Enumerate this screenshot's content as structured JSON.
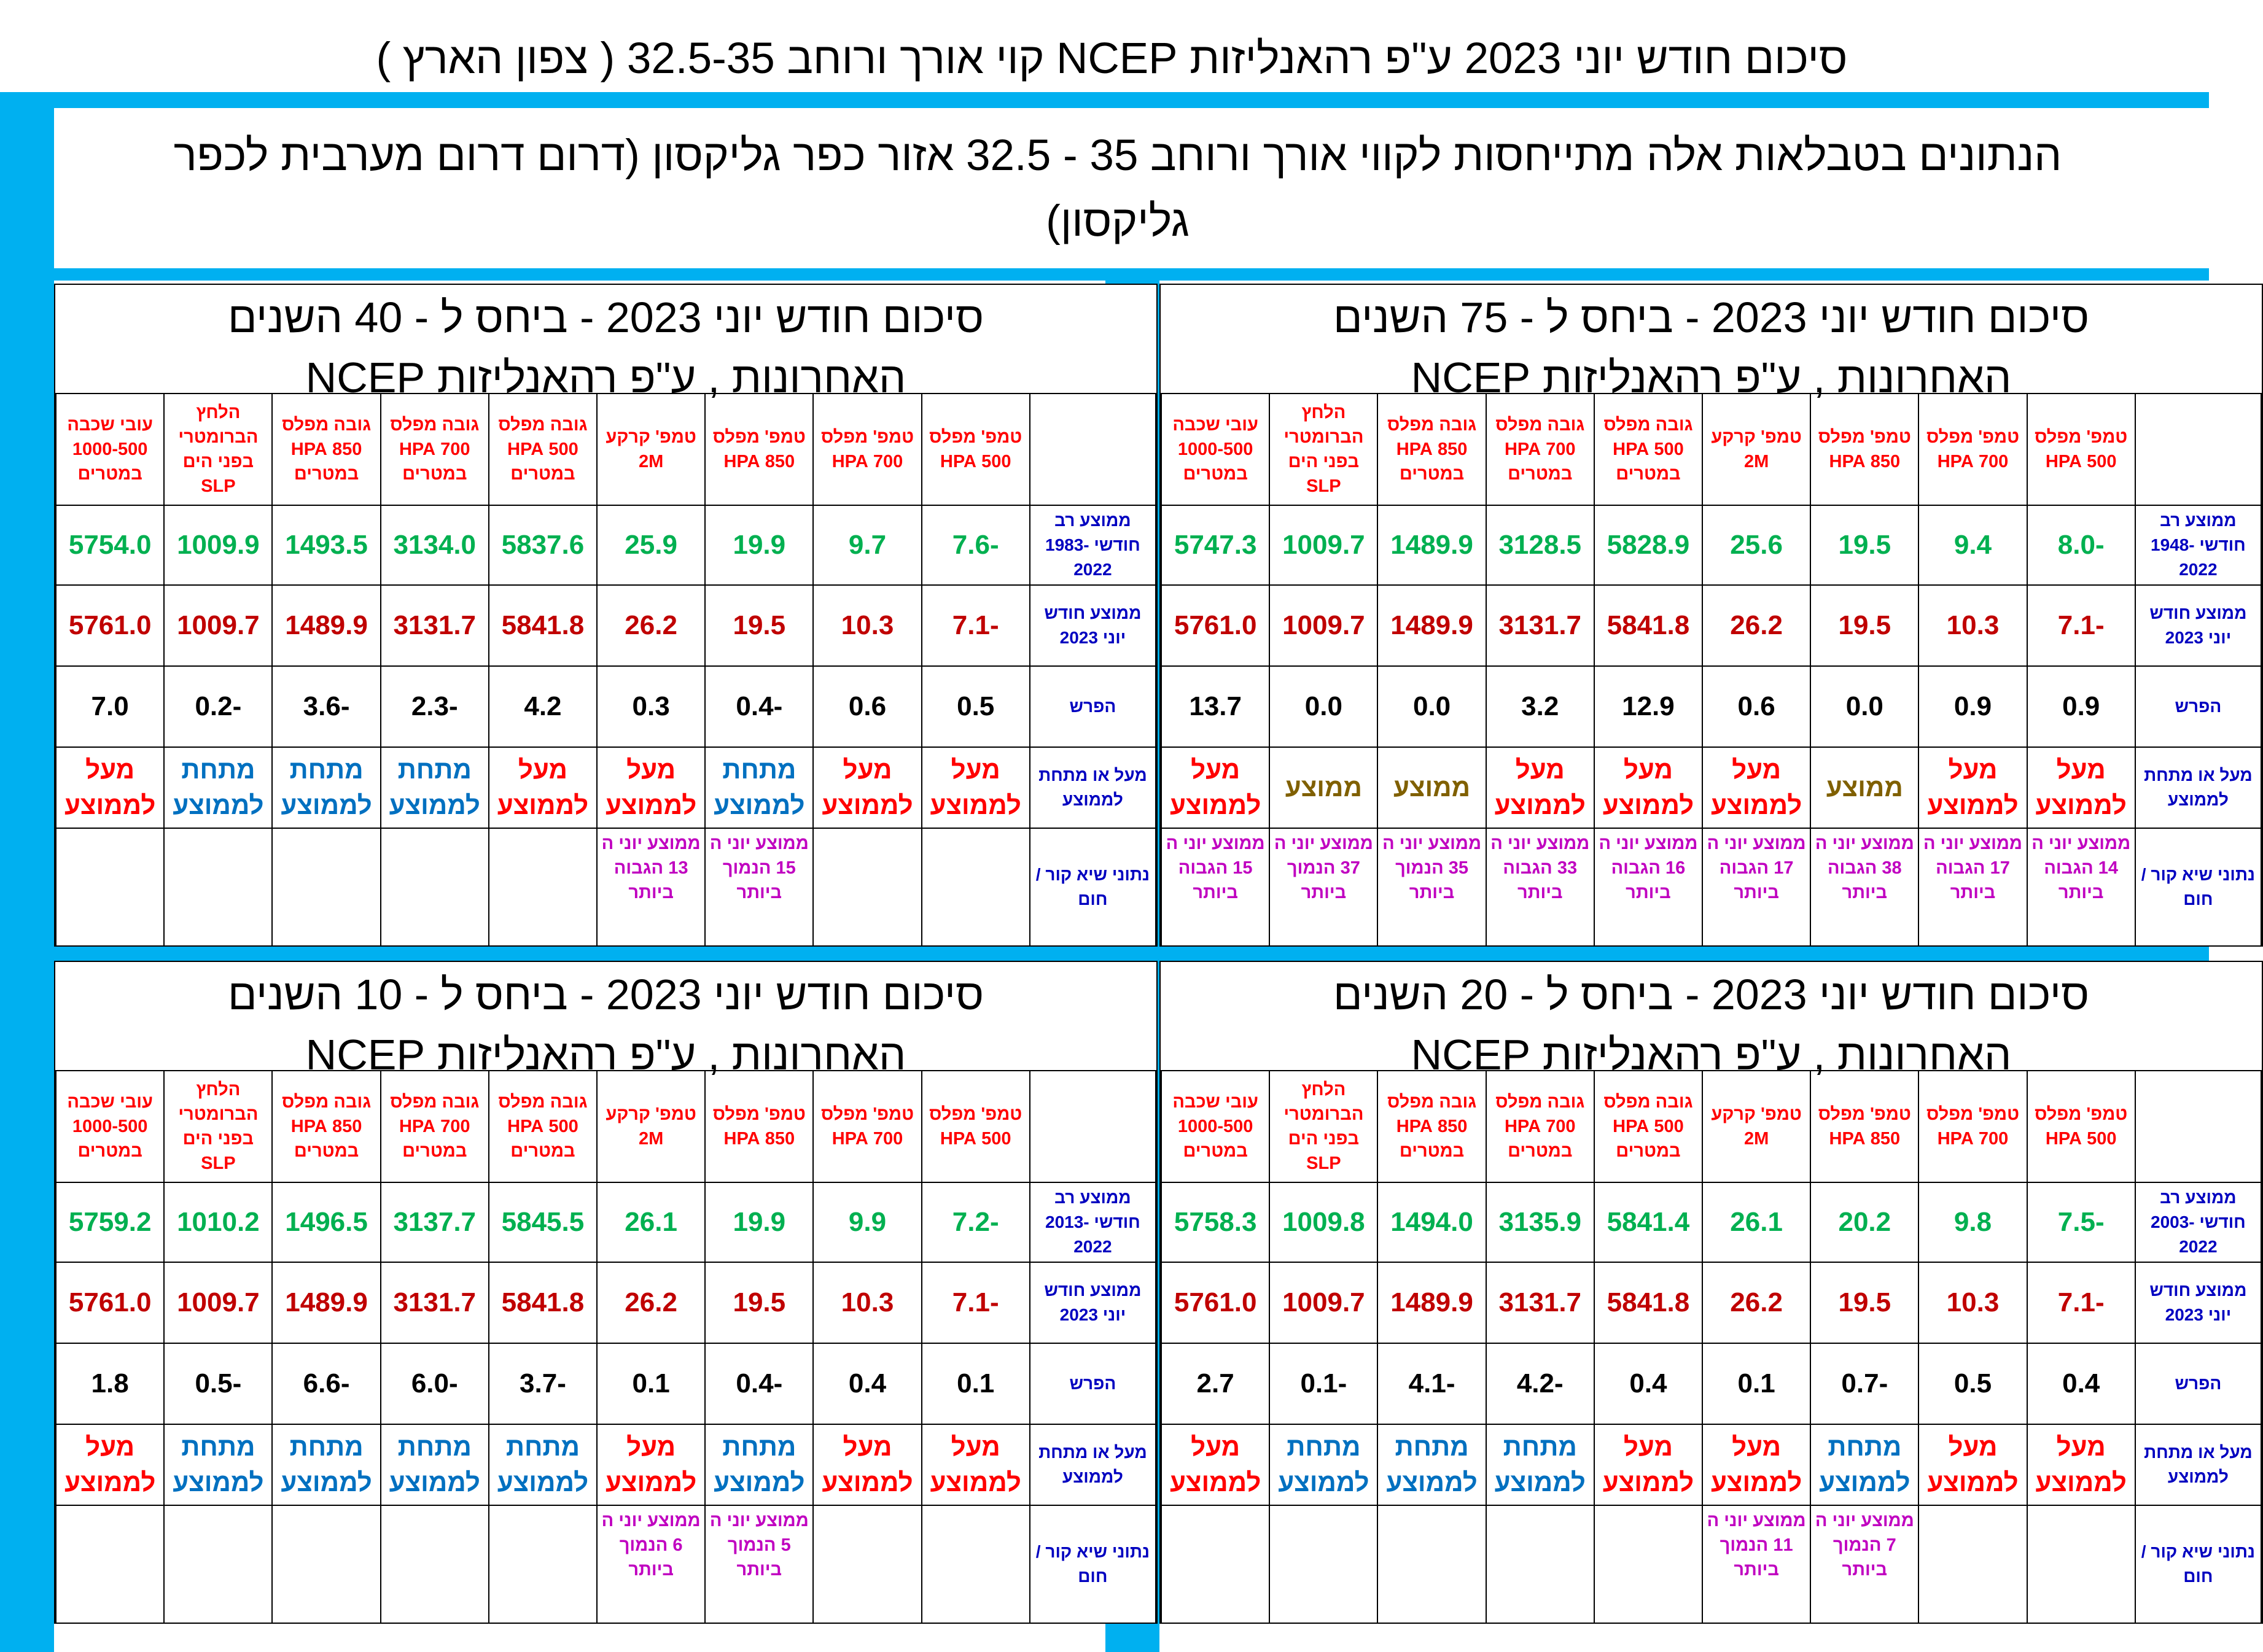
{
  "header": {
    "title": "סיכום חודש יוני 2023 ע\"פ רהאנליזות NCEP קוי אורך ורוחב 32.5-35 ( צפון הארץ )",
    "note_line1": "הנתונים בטבלאות אלה מתייחסות לקווי אורך ורוחב 35 - 32.5      אזור כפר  גליקסון  (דרום דרום מערבית לכפר",
    "note_line2": "גליקסון)"
  },
  "colors": {
    "strip_blue": "#00b0f0",
    "current_avg": "#c00000",
    "long_term_avg": "#00b050",
    "above_label": "#ff0000",
    "below_label": "#0070c0",
    "normal_label": "#806000",
    "record_label": "#c000c0",
    "row_label": "#0000c0"
  },
  "column_headers": [
    "טמפ' מפלס 500 HPA",
    "טמפ' מפלס 700 HPA",
    "טמפ' מפלס 850 HPA",
    "טמפ' קרקע 2M",
    "גובה מפלס 500 HPA במטרים",
    "גובה מפלס 700 HPA במטרים",
    "גובה מפלס 850 HPA במטרים",
    "הלחץ הברומטרי בפני הים SLP",
    "עובי שכבה 1000-500 במטרים"
  ],
  "row_labels": {
    "current": "ממוצע חודש יוני 2023",
    "diff": "הפרש",
    "compare": "מעל או מתחת לממוצע",
    "records": "נתוני שיא קור / חום"
  },
  "panels": [
    {
      "id": "75",
      "title_line1": "סיכום חודש יוני  2023  - ביחס ל - 75 השנים",
      "title_line2": "האחרונות  , ע\"פ רהאנליזות NCEP",
      "long_term_label": "ממוצע רב חודשי 1948-2022",
      "long_term": [
        "-8.0",
        "9.4",
        "19.5",
        "25.6",
        "5828.9",
        "3128.5",
        "1489.9",
        "1009.7",
        "5747.3"
      ],
      "current": [
        "-7.1",
        "10.3",
        "19.5",
        "26.2",
        "5841.8",
        "3131.7",
        "1489.9",
        "1009.7",
        "5761.0"
      ],
      "diff": [
        "0.9",
        "0.9",
        "0.0",
        "0.6",
        "12.9",
        "3.2",
        "0.0",
        "0.0",
        "13.7"
      ],
      "compare": [
        "מעל לממוצע",
        "מעל לממוצע",
        "ממוצע",
        "מעל לממוצע",
        "מעל לממוצע",
        "מעל לממוצע",
        "ממוצע",
        "ממוצע",
        "מעל לממוצע"
      ],
      "compare_kind": [
        "above",
        "above",
        "normal",
        "above",
        "above",
        "above",
        "normal",
        "normal",
        "above"
      ],
      "records": [
        "ממוצע יוני ה 14 הגבוה ביותר",
        "ממוצע יוני ה 17 הגבוה ביותר",
        "ממוצע יוני ה 38 הגבוה ביותר",
        "ממוצע יוני ה 17 הגבוה ביותר",
        "ממוצע יוני ה 16 הגבוה ביותר",
        "ממוצע יוני ה 33 הגבוה ביותר",
        "ממוצע יוני ה 35 הנמוך ביותר",
        "ממוצע יוני ה 37 הנמוך ביותר",
        "ממוצע יוני ה 15 הגבוה ביותר"
      ]
    },
    {
      "id": "40",
      "title_line1": "סיכום חודש יוני  2023  - ביחס ל - 40 השנים",
      "title_line2": "האחרונות  , ע\"פ רהאנליזות NCEP",
      "long_term_label": "ממוצע רב חודשי 1983-2022",
      "long_term": [
        "-7.6",
        "9.7",
        "19.9",
        "25.9",
        "5837.6",
        "3134.0",
        "1493.5",
        "1009.9",
        "5754.0"
      ],
      "current": [
        "-7.1",
        "10.3",
        "19.5",
        "26.2",
        "5841.8",
        "3131.7",
        "1489.9",
        "1009.7",
        "5761.0"
      ],
      "diff": [
        "0.5",
        "0.6",
        "-0.4",
        "0.3",
        "4.2",
        "-2.3",
        "-3.6",
        "-0.2",
        "7.0"
      ],
      "compare": [
        "מעל לממוצע",
        "מעל לממוצע",
        "מתחת לממוצע",
        "מעל לממוצע",
        "מעל לממוצע",
        "מתחת לממוצע",
        "מתחת לממוצע",
        "מתחת לממוצע",
        "מעל לממוצע"
      ],
      "compare_kind": [
        "above",
        "above",
        "below",
        "above",
        "above",
        "below",
        "below",
        "below",
        "above"
      ],
      "records": [
        "",
        "",
        "ממוצע יוני ה 15 הנמוך ביותר",
        "ממוצע יוני  ה 13 הגבוה ביותר",
        "",
        "",
        "",
        "",
        ""
      ]
    },
    {
      "id": "20",
      "title_line1": "סיכום חודש יוני  2023  - ביחס ל - 20 השנים",
      "title_line2": "האחרונות  , ע\"פ רהאנליזות NCEP",
      "long_term_label": "ממוצע רב חודשי 2003-2022",
      "long_term": [
        "-7.5",
        "9.8",
        "20.2",
        "26.1",
        "5841.4",
        "3135.9",
        "1494.0",
        "1009.8",
        "5758.3"
      ],
      "current": [
        "-7.1",
        "10.3",
        "19.5",
        "26.2",
        "5841.8",
        "3131.7",
        "1489.9",
        "1009.7",
        "5761.0"
      ],
      "diff": [
        "0.4",
        "0.5",
        "-0.7",
        "0.1",
        "0.4",
        "-4.2",
        "-4.1",
        "-0.1",
        "2.7"
      ],
      "compare": [
        "מעל לממוצע",
        "מעל לממוצע",
        "מתחת לממוצע",
        "מעל לממוצע",
        "מעל לממוצע",
        "מתחת לממוצע",
        "מתחת לממוצע",
        "מתחת לממוצע",
        "מעל לממוצע"
      ],
      "compare_kind": [
        "above",
        "above",
        "below",
        "above",
        "above",
        "below",
        "below",
        "below",
        "above"
      ],
      "records": [
        "",
        "",
        "ממוצע יוני ה 7 הנמוך ביותר",
        "ממוצע יוני  ה 11 הנמוך ביותר",
        "",
        "",
        "",
        "",
        ""
      ]
    },
    {
      "id": "10",
      "title_line1": "סיכום חודש יוני  2023  - ביחס ל - 10 השנים",
      "title_line2": "האחרונות  , ע\"פ רהאנליזות NCEP",
      "long_term_label": "ממוצע רב חודשי 2013-2022",
      "long_term": [
        "-7.2",
        "9.9",
        "19.9",
        "26.1",
        "5845.5",
        "3137.7",
        "1496.5",
        "1010.2",
        "5759.2"
      ],
      "current": [
        "-7.1",
        "10.3",
        "19.5",
        "26.2",
        "5841.8",
        "3131.7",
        "1489.9",
        "1009.7",
        "5761.0"
      ],
      "diff": [
        "0.1",
        "0.4",
        "-0.4",
        "0.1",
        "-3.7",
        "-6.0",
        "-6.6",
        "-0.5",
        "1.8"
      ],
      "compare": [
        "מעל לממוצע",
        "מעל לממוצע",
        "מתחת לממוצע",
        "מעל לממוצע",
        "מתחת לממוצע",
        "מתחת לממוצע",
        "מתחת לממוצע",
        "מתחת לממוצע",
        "מעל לממוצע"
      ],
      "compare_kind": [
        "above",
        "above",
        "below",
        "above",
        "below",
        "below",
        "below",
        "below",
        "above"
      ],
      "records": [
        "",
        "",
        "ממוצע יוני ה 5 הנמוך ביותר",
        "ממוצע יוני  ה 6 הנמוך ביותר",
        "",
        "",
        "",
        "",
        ""
      ]
    }
  ]
}
